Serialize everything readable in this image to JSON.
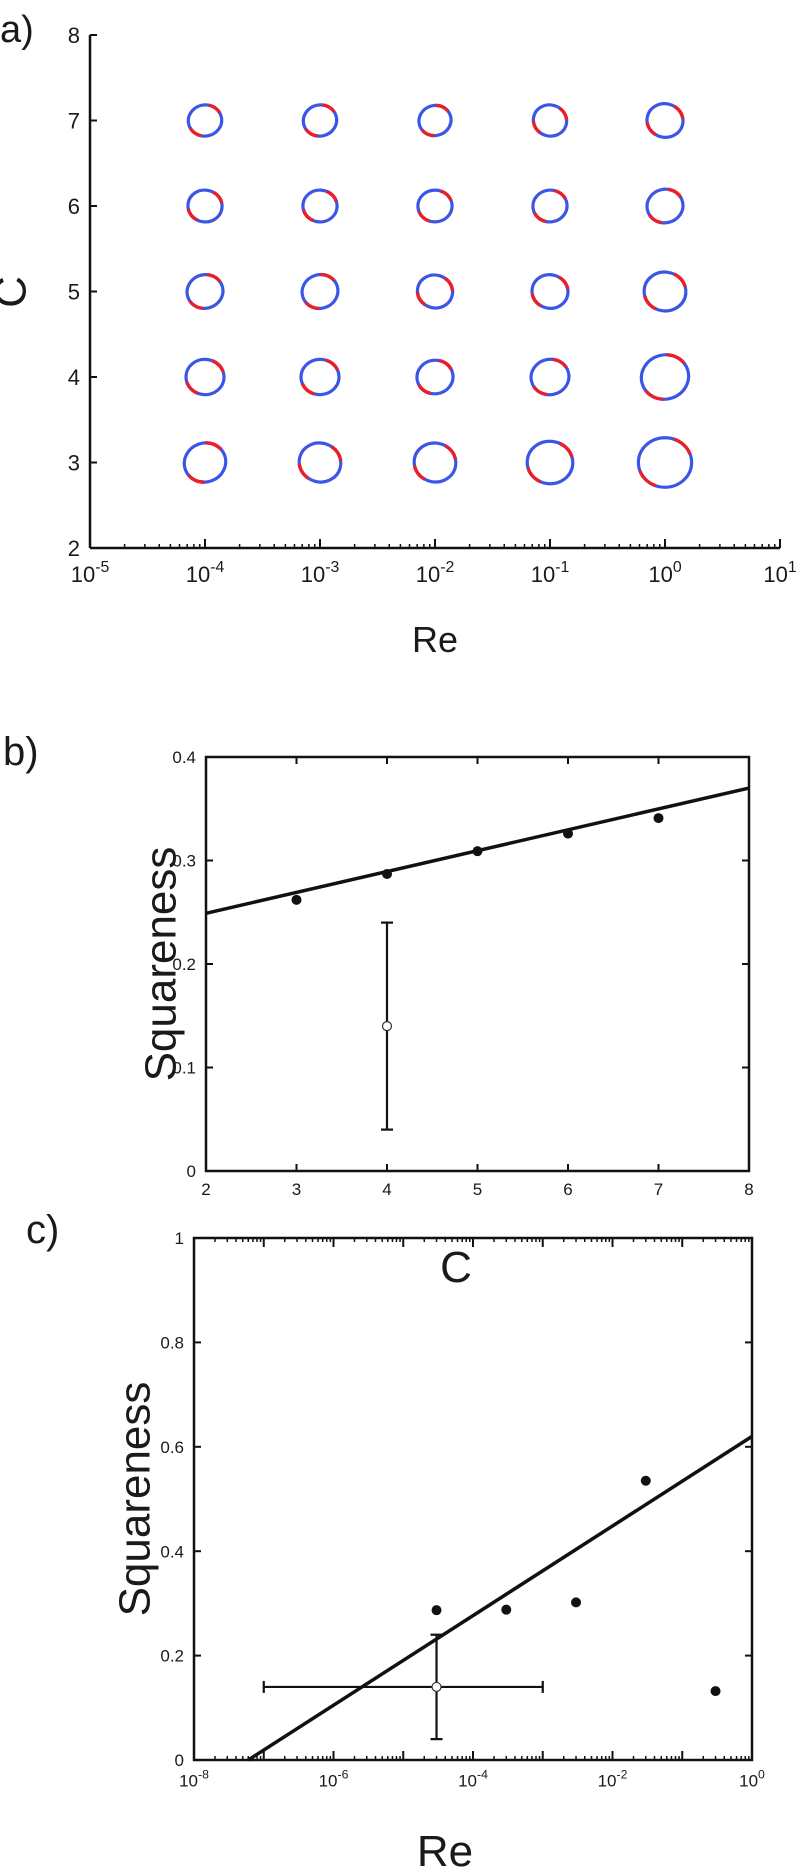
{
  "chart_data": [
    {
      "panel_label": "a)",
      "type": "scatter",
      "xlabel": "Re",
      "ylabel": "C",
      "x_scale": "log",
      "xlim": [
        1e-05,
        10
      ],
      "ylim": [
        2,
        8
      ],
      "x_ticks": [
        "10",
        "10",
        "10",
        "10",
        "10",
        "10",
        "10"
      ],
      "x_tick_exponents": [
        "-5",
        "-4",
        "-3",
        "-2",
        "-1",
        "0",
        "1"
      ],
      "y_ticks": [
        "2",
        "3",
        "4",
        "5",
        "6",
        "7",
        "8"
      ],
      "marker": "circular drop shapes (blue outline with red segments)",
      "colors": {
        "outline": "#3b55e6",
        "segment": "#e8202a"
      },
      "points": [
        {
          "re": 0.0001,
          "c": 3,
          "size": 1.1
        },
        {
          "re": 0.0001,
          "c": 4,
          "size": 1.0
        },
        {
          "re": 0.0001,
          "c": 5,
          "size": 0.95
        },
        {
          "re": 0.0001,
          "c": 6,
          "size": 0.9
        },
        {
          "re": 0.0001,
          "c": 7,
          "size": 0.88
        },
        {
          "re": 0.001,
          "c": 3,
          "size": 1.1
        },
        {
          "re": 0.001,
          "c": 4,
          "size": 1.0
        },
        {
          "re": 0.001,
          "c": 5,
          "size": 0.95
        },
        {
          "re": 0.001,
          "c": 6,
          "size": 0.9
        },
        {
          "re": 0.001,
          "c": 7,
          "size": 0.88
        },
        {
          "re": 0.01,
          "c": 3,
          "size": 1.1
        },
        {
          "re": 0.01,
          "c": 4,
          "size": 0.95
        },
        {
          "re": 0.01,
          "c": 5,
          "size": 0.93
        },
        {
          "re": 0.01,
          "c": 6,
          "size": 0.9
        },
        {
          "re": 0.01,
          "c": 7,
          "size": 0.85
        },
        {
          "re": 0.1,
          "c": 3,
          "size": 1.2
        },
        {
          "re": 0.1,
          "c": 4,
          "size": 1.0
        },
        {
          "re": 0.1,
          "c": 5,
          "size": 0.95
        },
        {
          "re": 0.1,
          "c": 6,
          "size": 0.9
        },
        {
          "re": 0.1,
          "c": 7,
          "size": 0.88
        },
        {
          "re": 1,
          "c": 3,
          "size": 1.4
        },
        {
          "re": 1,
          "c": 4,
          "size": 1.25
        },
        {
          "re": 1,
          "c": 5,
          "size": 1.1
        },
        {
          "re": 1,
          "c": 6,
          "size": 0.95
        },
        {
          "re": 1,
          "c": 7,
          "size": 0.95
        }
      ]
    },
    {
      "panel_label": "b)",
      "type": "scatter",
      "xlabel": "C",
      "ylabel": "Squareness",
      "xlim": [
        2,
        8
      ],
      "ylim": [
        0,
        0.4
      ],
      "x_ticks": [
        "2",
        "3",
        "4",
        "5",
        "6",
        "7",
        "8"
      ],
      "y_ticks": [
        "0",
        "0.1",
        "0.2",
        "0.3",
        "0.4"
      ],
      "points": {
        "x": [
          3,
          4,
          5,
          6,
          7
        ],
        "y": [
          0.262,
          0.287,
          0.309,
          0.326,
          0.341
        ]
      },
      "fit_line": {
        "x": [
          2,
          8
        ],
        "y": [
          0.249,
          0.37
        ]
      },
      "error_point": {
        "x": 4,
        "y": 0.14,
        "y_err_low": 0.04,
        "y_err_high": 0.24
      }
    },
    {
      "panel_label": "c)",
      "type": "scatter",
      "xlabel": "Re",
      "ylabel": "Squareness",
      "x_scale": "log",
      "xlim": [
        1e-08,
        1
      ],
      "ylim": [
        0,
        1
      ],
      "x_ticks": [
        "10",
        "10",
        "10",
        "10",
        "10"
      ],
      "x_tick_exponents": [
        "-8",
        "-6",
        "-4",
        "-2",
        "0"
      ],
      "y_ticks": [
        "0",
        "0.2",
        "0.4",
        "0.6",
        "0.8",
        "1"
      ],
      "points": {
        "x": [
          3e-05,
          0.0003,
          0.003,
          0.03,
          0.3
        ],
        "y": [
          0.287,
          0.288,
          0.302,
          0.535,
          0.132
        ]
      },
      "fit_line": {
        "x": [
          6e-08,
          1
        ],
        "y": [
          0,
          0.62
        ]
      },
      "error_point": {
        "x": 3e-05,
        "y": 0.14,
        "y_err_low": 0.04,
        "y_err_high": 0.24,
        "x_err_low": 1e-07,
        "x_err_high": 0.001
      }
    }
  ]
}
